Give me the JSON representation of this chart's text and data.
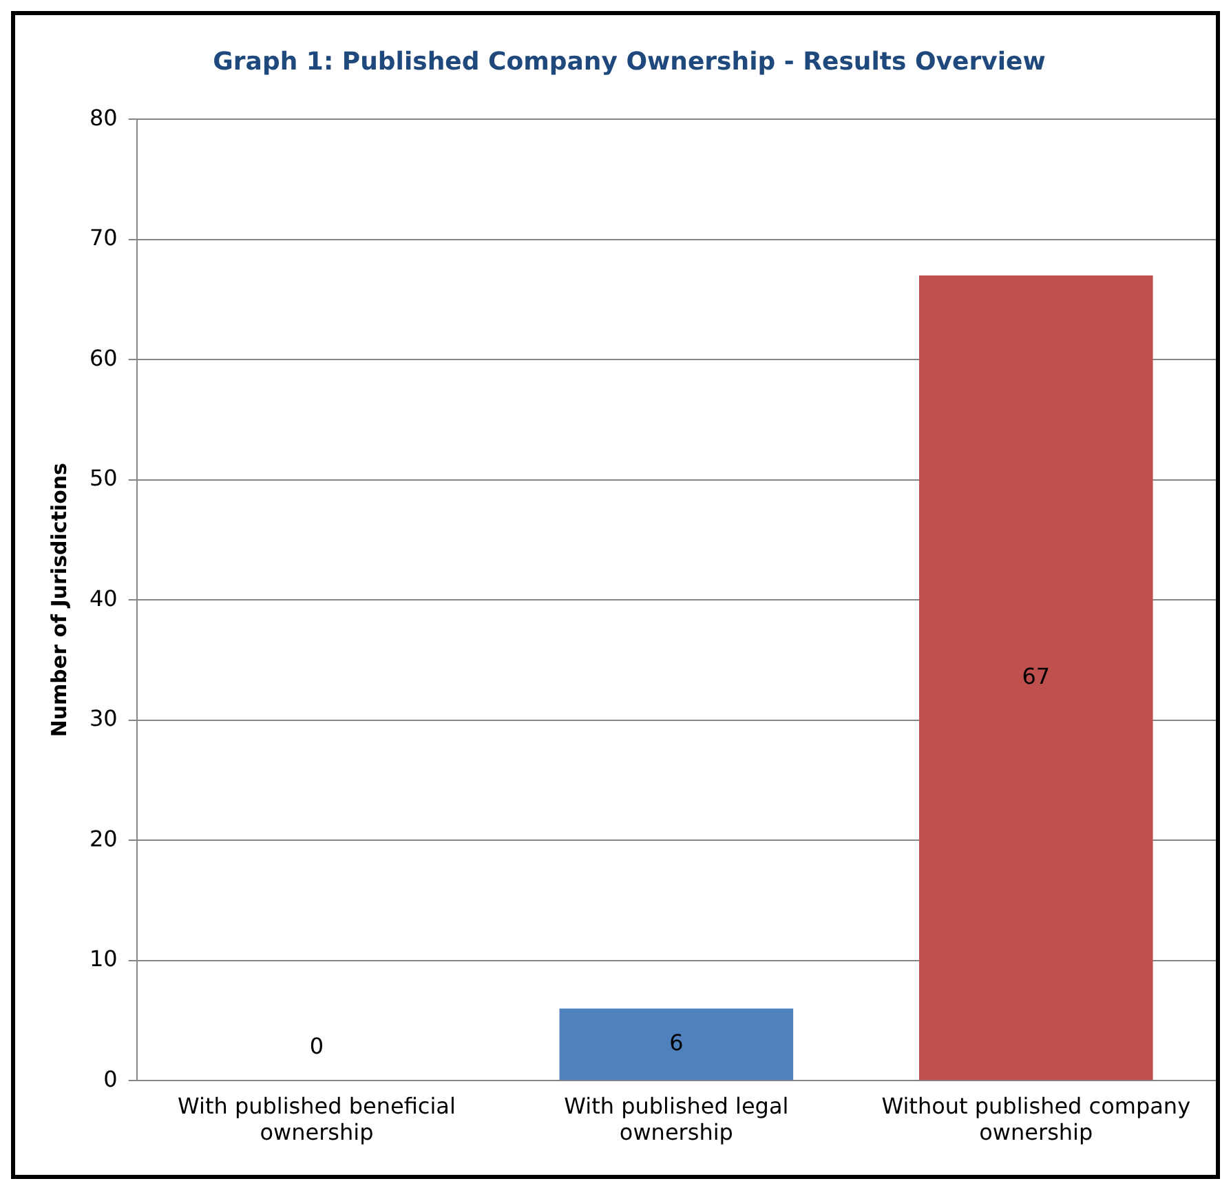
{
  "chart_data": {
    "type": "bar",
    "title": "Graph 1: Published Company Ownership - Results Overview",
    "ylabel": "Number of Jurisdictions",
    "categories": [
      "With published beneficial ownership",
      "With published legal ownership",
      "Without published company ownership"
    ],
    "values": [
      0,
      6,
      67
    ],
    "colors": [
      "#4f81bd",
      "#4f81bd",
      "#c0504d"
    ],
    "ylim": [
      0,
      80
    ],
    "yticks": [
      0,
      10,
      20,
      30,
      40,
      50,
      60,
      70,
      80
    ],
    "grid": "y",
    "legend": false,
    "data_labels": true
  }
}
